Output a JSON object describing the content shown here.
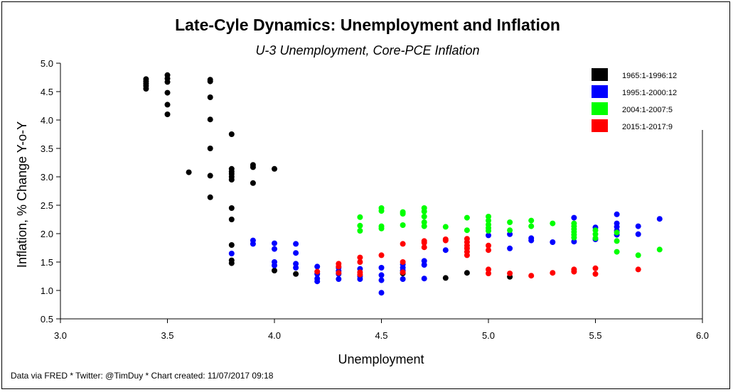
{
  "chart_data": {
    "type": "scatter",
    "title": "Late-Cyle Dynamics: Unemployment and Inflation",
    "subtitle": "U-3 Unemployment, Core-PCE Inflation",
    "xlabel": "Unemployment",
    "ylabel": "Inflation, % Change Y-o-Y",
    "xlim": [
      3.0,
      6.0
    ],
    "ylim": [
      0.5,
      5.0
    ],
    "xticks": [
      "3.0",
      "3.5",
      "4.0",
      "4.5",
      "5.0",
      "5.5",
      "6.0"
    ],
    "yticks": [
      "0.5",
      "1.0",
      "1.5",
      "2.0",
      "2.5",
      "3.0",
      "3.5",
      "4.0",
      "4.5",
      "5.0"
    ],
    "grid": false,
    "legend_position": "top-right",
    "footer": "Data via FRED * Twitter: @TimDuy * Chart created: 11/07/2017 09:18",
    "series": [
      {
        "name": "1965:1-1996:12",
        "color": "#000000",
        "points": [
          [
            3.4,
            4.72
          ],
          [
            3.4,
            4.68
          ],
          [
            3.4,
            4.64
          ],
          [
            3.4,
            4.6
          ],
          [
            3.4,
            4.55
          ],
          [
            3.5,
            4.79
          ],
          [
            3.5,
            4.73
          ],
          [
            3.5,
            4.67
          ],
          [
            3.5,
            4.48
          ],
          [
            3.5,
            4.27
          ],
          [
            3.5,
            4.1
          ],
          [
            3.6,
            3.08
          ],
          [
            3.7,
            4.71
          ],
          [
            3.7,
            4.68
          ],
          [
            3.7,
            4.4
          ],
          [
            3.7,
            4.01
          ],
          [
            3.7,
            3.5
          ],
          [
            3.7,
            3.02
          ],
          [
            3.7,
            2.64
          ],
          [
            3.8,
            3.75
          ],
          [
            3.8,
            3.14
          ],
          [
            3.8,
            3.09
          ],
          [
            3.8,
            3.05
          ],
          [
            3.8,
            3.0
          ],
          [
            3.8,
            2.95
          ],
          [
            3.8,
            2.45
          ],
          [
            3.8,
            2.25
          ],
          [
            3.8,
            1.8
          ],
          [
            3.8,
            1.53
          ],
          [
            3.8,
            1.48
          ],
          [
            3.9,
            3.21
          ],
          [
            3.9,
            3.17
          ],
          [
            3.9,
            2.89
          ],
          [
            4.0,
            3.14
          ],
          [
            4.0,
            1.35
          ],
          [
            4.1,
            1.29
          ],
          [
            4.6,
            1.3
          ],
          [
            4.8,
            1.22
          ],
          [
            4.9,
            1.31
          ],
          [
            5.1,
            1.24
          ]
        ]
      },
      {
        "name": "1995:1-2000:12",
        "color": "#0000ff",
        "points": [
          [
            3.8,
            1.65
          ],
          [
            3.9,
            1.88
          ],
          [
            3.9,
            1.82
          ],
          [
            4.0,
            1.83
          ],
          [
            4.0,
            1.73
          ],
          [
            4.0,
            1.5
          ],
          [
            4.0,
            1.44
          ],
          [
            4.1,
            1.82
          ],
          [
            4.1,
            1.66
          ],
          [
            4.1,
            1.47
          ],
          [
            4.1,
            1.4
          ],
          [
            4.2,
            1.42
          ],
          [
            4.2,
            1.29
          ],
          [
            4.2,
            1.21
          ],
          [
            4.2,
            1.16
          ],
          [
            4.3,
            1.4
          ],
          [
            4.3,
            1.34
          ],
          [
            4.3,
            1.29
          ],
          [
            4.3,
            1.2
          ],
          [
            4.4,
            1.38
          ],
          [
            4.4,
            1.25
          ],
          [
            4.4,
            1.2
          ],
          [
            4.5,
            1.4
          ],
          [
            4.5,
            1.27
          ],
          [
            4.5,
            1.18
          ],
          [
            4.5,
            0.96
          ],
          [
            4.6,
            1.46
          ],
          [
            4.6,
            1.4
          ],
          [
            4.6,
            1.35
          ],
          [
            4.6,
            1.2
          ],
          [
            4.7,
            1.52
          ],
          [
            4.7,
            1.45
          ],
          [
            4.7,
            1.21
          ],
          [
            4.8,
            1.71
          ],
          [
            5.0,
            1.97
          ],
          [
            5.1,
            1.99
          ],
          [
            5.1,
            1.74
          ],
          [
            5.2,
            1.92
          ],
          [
            5.2,
            1.88
          ],
          [
            5.3,
            1.85
          ],
          [
            5.4,
            2.28
          ],
          [
            5.4,
            1.86
          ],
          [
            5.5,
            2.11
          ],
          [
            5.5,
            1.9
          ],
          [
            5.6,
            2.34
          ],
          [
            5.6,
            2.18
          ],
          [
            5.6,
            2.12
          ],
          [
            5.6,
            2.05
          ],
          [
            5.6,
            1.98
          ],
          [
            5.7,
            2.13
          ],
          [
            5.7,
            1.99
          ],
          [
            5.8,
            2.26
          ]
        ]
      },
      {
        "name": "2004:1-2007:5",
        "color": "#00ff00",
        "points": [
          [
            4.4,
            2.29
          ],
          [
            4.4,
            2.14
          ],
          [
            4.4,
            2.05
          ],
          [
            4.5,
            2.45
          ],
          [
            4.5,
            2.4
          ],
          [
            4.5,
            2.13
          ],
          [
            4.5,
            2.09
          ],
          [
            4.6,
            2.38
          ],
          [
            4.6,
            2.35
          ],
          [
            4.6,
            2.15
          ],
          [
            4.7,
            2.45
          ],
          [
            4.7,
            2.39
          ],
          [
            4.7,
            2.3
          ],
          [
            4.7,
            2.2
          ],
          [
            4.7,
            2.13
          ],
          [
            4.8,
            2.12
          ],
          [
            4.9,
            2.28
          ],
          [
            4.9,
            2.06
          ],
          [
            5.0,
            2.3
          ],
          [
            5.0,
            2.23
          ],
          [
            5.0,
            2.16
          ],
          [
            5.0,
            2.1
          ],
          [
            5.0,
            2.05
          ],
          [
            5.1,
            2.2
          ],
          [
            5.1,
            2.06
          ],
          [
            5.2,
            2.23
          ],
          [
            5.2,
            2.13
          ],
          [
            5.3,
            2.18
          ],
          [
            5.4,
            2.18
          ],
          [
            5.4,
            2.13
          ],
          [
            5.4,
            2.08
          ],
          [
            5.4,
            2.03
          ],
          [
            5.4,
            1.98
          ],
          [
            5.4,
            1.93
          ],
          [
            5.5,
            2.06
          ],
          [
            5.5,
            1.99
          ],
          [
            5.5,
            1.92
          ],
          [
            5.6,
            2.02
          ],
          [
            5.6,
            1.87
          ],
          [
            5.6,
            1.68
          ],
          [
            5.7,
            1.62
          ],
          [
            5.8,
            1.72
          ]
        ]
      },
      {
        "name": "2015:1-2017:9",
        "color": "#ff0000",
        "points": [
          [
            4.2,
            1.33
          ],
          [
            4.3,
            1.47
          ],
          [
            4.3,
            1.42
          ],
          [
            4.3,
            1.31
          ],
          [
            4.4,
            1.58
          ],
          [
            4.4,
            1.5
          ],
          [
            4.4,
            1.32
          ],
          [
            4.4,
            1.28
          ],
          [
            4.5,
            1.62
          ],
          [
            4.6,
            1.82
          ],
          [
            4.6,
            1.5
          ],
          [
            4.6,
            1.32
          ],
          [
            4.7,
            1.87
          ],
          [
            4.7,
            1.84
          ],
          [
            4.7,
            1.76
          ],
          [
            4.8,
            1.9
          ],
          [
            4.8,
            1.88
          ],
          [
            4.9,
            1.91
          ],
          [
            4.9,
            1.85
          ],
          [
            4.9,
            1.79
          ],
          [
            4.9,
            1.74
          ],
          [
            4.9,
            1.68
          ],
          [
            4.9,
            1.62
          ],
          [
            5.0,
            1.79
          ],
          [
            5.0,
            1.71
          ],
          [
            5.0,
            1.37
          ],
          [
            5.0,
            1.3
          ],
          [
            5.1,
            1.3
          ],
          [
            5.2,
            1.26
          ],
          [
            5.3,
            1.31
          ],
          [
            5.4,
            1.37
          ],
          [
            5.4,
            1.33
          ],
          [
            5.5,
            1.39
          ],
          [
            5.5,
            1.29
          ],
          [
            5.7,
            1.37
          ]
        ]
      }
    ]
  }
}
